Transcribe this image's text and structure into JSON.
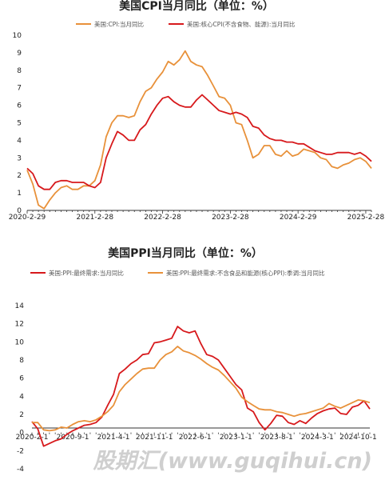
{
  "colors": {
    "red": "#d7191c",
    "orange": "#e8913a"
  },
  "watermark": "股期汇(www.guqihui.cn)",
  "chart_data": [
    {
      "type": "line",
      "title": "美国CPI当月同比（单位：%）",
      "ylim": [
        0,
        10
      ],
      "yticks": [
        0,
        1,
        2,
        3,
        4,
        5,
        6,
        7,
        8,
        9,
        10
      ],
      "x_range": [
        0,
        61
      ],
      "xtick_labels": [
        {
          "pos": 0,
          "label": "2020-2-29"
        },
        {
          "pos": 12,
          "label": "2021-2-28"
        },
        {
          "pos": 24,
          "label": "2022-2-28"
        },
        {
          "pos": 36,
          "label": "2023-2-28"
        },
        {
          "pos": 48,
          "label": "2024-2-29"
        },
        {
          "pos": 60,
          "label": "2025-2-28"
        }
      ],
      "series": [
        {
          "name": "美国:CPI:当月同比",
          "color": "orange",
          "values": [
            2.3,
            1.5,
            0.3,
            0.1,
            0.6,
            1.0,
            1.3,
            1.4,
            1.2,
            1.2,
            1.4,
            1.4,
            1.7,
            2.6,
            4.2,
            5.0,
            5.4,
            5.4,
            5.3,
            5.4,
            6.2,
            6.8,
            7.0,
            7.5,
            7.9,
            8.5,
            8.3,
            8.6,
            9.1,
            8.5,
            8.3,
            8.2,
            7.7,
            7.1,
            6.5,
            6.4,
            6.0,
            5.0,
            4.9,
            4.0,
            3.0,
            3.2,
            3.7,
            3.7,
            3.2,
            3.1,
            3.4,
            3.1,
            3.2,
            3.5,
            3.4,
            3.3,
            3.0,
            2.9,
            2.5,
            2.4,
            2.6,
            2.7,
            2.9,
            3.0,
            2.8,
            2.4
          ]
        },
        {
          "name": "美国:核心CPI(不含食物、能源):当月同比",
          "color": "red",
          "values": [
            2.4,
            2.1,
            1.4,
            1.2,
            1.2,
            1.6,
            1.7,
            1.7,
            1.6,
            1.6,
            1.6,
            1.4,
            1.3,
            1.6,
            3.0,
            3.8,
            4.5,
            4.3,
            4.0,
            4.0,
            4.6,
            4.9,
            5.5,
            6.0,
            6.4,
            6.5,
            6.2,
            6.0,
            5.9,
            5.9,
            6.3,
            6.6,
            6.3,
            6.0,
            5.7,
            5.6,
            5.5,
            5.6,
            5.5,
            5.3,
            4.8,
            4.7,
            4.3,
            4.1,
            4.0,
            4.0,
            3.9,
            3.9,
            3.8,
            3.8,
            3.6,
            3.4,
            3.3,
            3.2,
            3.2,
            3.3,
            3.3,
            3.3,
            3.2,
            3.3,
            3.1,
            2.8
          ]
        }
      ]
    },
    {
      "type": "line",
      "title": "美国PPI当月同比（单位：%）",
      "ylim": [
        -4,
        14
      ],
      "yticks": [
        -4,
        -2,
        0,
        2,
        4,
        6,
        8,
        10,
        12,
        14
      ],
      "x_range": [
        0,
        58
      ],
      "xtick_labels": [
        {
          "pos": 0,
          "label": "2020-2-1"
        },
        {
          "pos": 7,
          "label": "2020-9-1"
        },
        {
          "pos": 14,
          "label": "2021-4-1"
        },
        {
          "pos": 21,
          "label": "2021-11-1"
        },
        {
          "pos": 28,
          "label": "2022-6-1"
        },
        {
          "pos": 35,
          "label": "2023-1-1"
        },
        {
          "pos": 42,
          "label": "2023-8-1"
        },
        {
          "pos": 49,
          "label": "2024-3-1"
        },
        {
          "pos": 56,
          "label": "2024-10-1"
        }
      ],
      "series": [
        {
          "name": "美国:PPI:最终需求:当月同比",
          "color": "red",
          "values": [
            1.2,
            0.4,
            -1.5,
            -1.2,
            -0.9,
            -0.7,
            -0.2,
            0.2,
            0.5,
            0.8,
            0.9,
            1.1,
            1.7,
            3.0,
            4.2,
            6.5,
            7.0,
            7.6,
            8.0,
            8.6,
            8.7,
            9.9,
            10.0,
            10.2,
            10.4,
            11.7,
            11.2,
            11.0,
            11.2,
            9.8,
            8.6,
            8.4,
            8.0,
            7.1,
            6.2,
            5.3,
            4.7,
            2.7,
            2.3,
            1.1,
            0.3,
            1.0,
            1.9,
            1.8,
            1.1,
            0.9,
            1.3,
            1.0,
            1.6,
            2.1,
            2.4,
            2.6,
            2.7,
            2.1,
            2.0,
            2.8,
            3.0,
            3.5,
            2.6
          ]
        },
        {
          "name": "美国:PPI:最终需求:不含食品和能源(核心PPI):季调:当月同比",
          "color": "orange",
          "values": [
            1.1,
            1.1,
            0.3,
            0.2,
            0.3,
            0.6,
            0.5,
            0.9,
            1.2,
            1.3,
            1.2,
            1.4,
            1.8,
            2.3,
            3.0,
            4.5,
            5.3,
            5.9,
            6.5,
            7.0,
            7.1,
            7.1,
            8.0,
            8.6,
            8.9,
            9.5,
            9.0,
            8.8,
            8.5,
            8.1,
            7.6,
            7.2,
            6.9,
            6.3,
            5.6,
            4.9,
            3.9,
            3.4,
            3.0,
            2.6,
            2.5,
            2.5,
            2.3,
            2.2,
            2.0,
            1.8,
            2.0,
            2.1,
            2.3,
            2.5,
            2.7,
            3.2,
            2.9,
            2.7,
            3.0,
            3.3,
            3.6,
            3.5,
            3.3
          ]
        }
      ]
    }
  ]
}
